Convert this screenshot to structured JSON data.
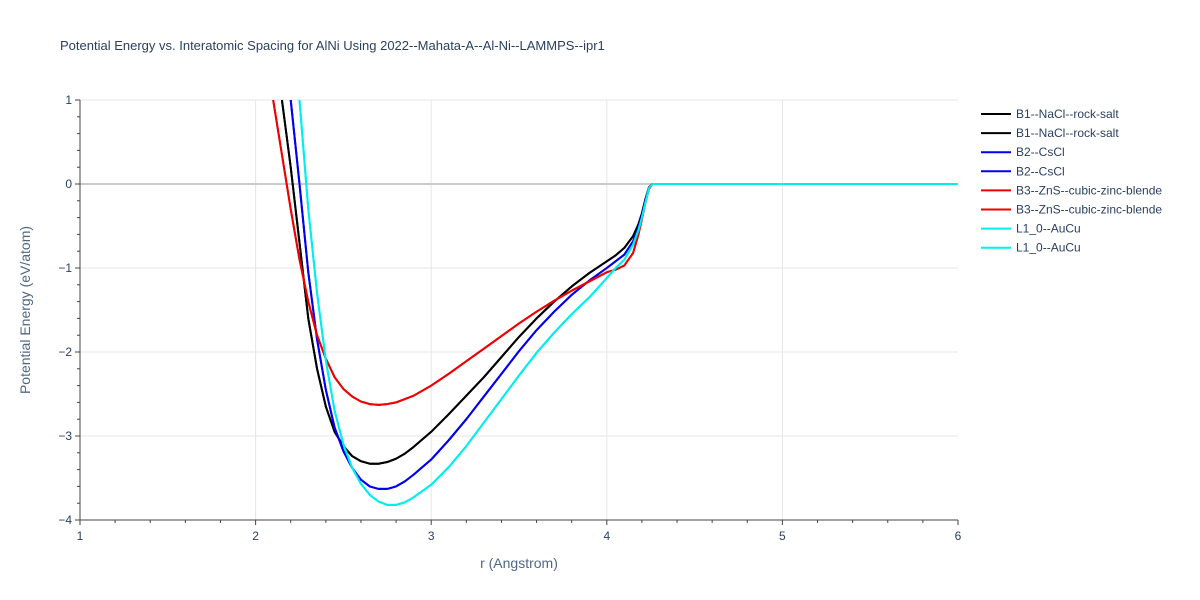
{
  "chart_data": {
    "type": "line",
    "title": "Potential Energy vs. Interatomic Spacing for AlNi Using 2022--Mahata-A--Al-Ni--LAMMPS--ipr1",
    "xlabel": "r (Angstrom)",
    "ylabel": "Potential Energy (eV/atom)",
    "xlim": [
      1,
      6
    ],
    "ylim": [
      -4,
      1
    ],
    "xticks": [
      1,
      2,
      3,
      4,
      5,
      6
    ],
    "xtick_labels": [
      "1",
      "2",
      "3",
      "4",
      "5",
      "6"
    ],
    "yticks": [
      1,
      0,
      -1,
      -2,
      -3,
      -4
    ],
    "ytick_labels": [
      "1",
      "0",
      "−1",
      "−2",
      "−3",
      "−4"
    ],
    "grid": true,
    "legend_position": "right",
    "series": [
      {
        "name": "B1--NaCl--rock-salt",
        "color": "#000000",
        "x": [
          2.15,
          2.2,
          2.25,
          2.3,
          2.35,
          2.4,
          2.45,
          2.5,
          2.55,
          2.6,
          2.65,
          2.7,
          2.75,
          2.8,
          2.85,
          2.9,
          3.0,
          3.1,
          3.2,
          3.3,
          3.4,
          3.5,
          3.6,
          3.7,
          3.8,
          3.9,
          4.0,
          4.05,
          4.1,
          4.15,
          4.18,
          4.2,
          4.22,
          4.24,
          4.26,
          4.3,
          4.5,
          5.0,
          5.5,
          6.0
        ],
        "y": [
          1.0,
          0.2,
          -0.7,
          -1.6,
          -2.2,
          -2.65,
          -2.95,
          -3.12,
          -3.24,
          -3.3,
          -3.33,
          -3.33,
          -3.31,
          -3.27,
          -3.21,
          -3.13,
          -2.95,
          -2.74,
          -2.52,
          -2.3,
          -2.06,
          -1.82,
          -1.6,
          -1.4,
          -1.22,
          -1.06,
          -0.92,
          -0.85,
          -0.76,
          -0.62,
          -0.48,
          -0.35,
          -0.18,
          -0.04,
          0.0,
          0.0,
          0.0,
          0.0,
          0.0,
          0.0
        ]
      },
      {
        "name": "B1--NaCl--rock-salt",
        "color": "#000000",
        "x": [
          2.15,
          2.2,
          2.25,
          2.3,
          2.35,
          2.4,
          2.45,
          2.5,
          2.55,
          2.6,
          2.65,
          2.7,
          2.75,
          2.8,
          2.85,
          2.9,
          3.0,
          3.1,
          3.2,
          3.3,
          3.4,
          3.5,
          3.6,
          3.7,
          3.8,
          3.9,
          4.0,
          4.05,
          4.1,
          4.15,
          4.18,
          4.2,
          4.22,
          4.24,
          4.26,
          4.3,
          4.5,
          5.0,
          5.5,
          6.0
        ],
        "y": [
          1.0,
          0.2,
          -0.7,
          -1.6,
          -2.2,
          -2.65,
          -2.95,
          -3.12,
          -3.24,
          -3.3,
          -3.33,
          -3.33,
          -3.31,
          -3.27,
          -3.21,
          -3.13,
          -2.95,
          -2.74,
          -2.52,
          -2.3,
          -2.06,
          -1.82,
          -1.6,
          -1.4,
          -1.22,
          -1.06,
          -0.92,
          -0.85,
          -0.76,
          -0.62,
          -0.48,
          -0.35,
          -0.18,
          -0.04,
          0.0,
          0.0,
          0.0,
          0.0,
          0.0,
          0.0
        ]
      },
      {
        "name": "B2--CsCl",
        "color": "#0000ee",
        "x": [
          2.2,
          2.25,
          2.3,
          2.35,
          2.4,
          2.45,
          2.5,
          2.55,
          2.6,
          2.65,
          2.7,
          2.75,
          2.8,
          2.85,
          2.9,
          3.0,
          3.1,
          3.2,
          3.3,
          3.4,
          3.5,
          3.6,
          3.7,
          3.8,
          3.9,
          4.0,
          4.05,
          4.1,
          4.15,
          4.18,
          4.2,
          4.22,
          4.24,
          4.26,
          4.3,
          4.5,
          5.0,
          5.5,
          6.0
        ],
        "y": [
          1.0,
          0.0,
          -1.05,
          -1.85,
          -2.45,
          -2.9,
          -3.18,
          -3.38,
          -3.52,
          -3.6,
          -3.63,
          -3.63,
          -3.6,
          -3.54,
          -3.46,
          -3.28,
          -3.05,
          -2.8,
          -2.53,
          -2.26,
          -1.99,
          -1.74,
          -1.52,
          -1.32,
          -1.15,
          -1.0,
          -0.92,
          -0.84,
          -0.68,
          -0.52,
          -0.38,
          -0.2,
          -0.05,
          0.0,
          0.0,
          0.0,
          0.0,
          0.0,
          0.0
        ]
      },
      {
        "name": "B2--CsCl",
        "color": "#0000ee",
        "x": [
          2.2,
          2.25,
          2.3,
          2.35,
          2.4,
          2.45,
          2.5,
          2.55,
          2.6,
          2.65,
          2.7,
          2.75,
          2.8,
          2.85,
          2.9,
          3.0,
          3.1,
          3.2,
          3.3,
          3.4,
          3.5,
          3.6,
          3.7,
          3.8,
          3.9,
          4.0,
          4.05,
          4.1,
          4.15,
          4.18,
          4.2,
          4.22,
          4.24,
          4.26,
          4.3,
          4.5,
          5.0,
          5.5,
          6.0
        ],
        "y": [
          1.0,
          0.0,
          -1.05,
          -1.85,
          -2.45,
          -2.9,
          -3.18,
          -3.38,
          -3.52,
          -3.6,
          -3.63,
          -3.63,
          -3.6,
          -3.54,
          -3.46,
          -3.28,
          -3.05,
          -2.8,
          -2.53,
          -2.26,
          -1.99,
          -1.74,
          -1.52,
          -1.32,
          -1.15,
          -1.0,
          -0.92,
          -0.84,
          -0.68,
          -0.52,
          -0.38,
          -0.2,
          -0.05,
          0.0,
          0.0,
          0.0,
          0.0,
          0.0,
          0.0
        ]
      },
      {
        "name": "B3--ZnS--cubic-zinc-blende",
        "color": "#ee0000",
        "x": [
          2.1,
          2.15,
          2.2,
          2.25,
          2.3,
          2.35,
          2.4,
          2.45,
          2.5,
          2.55,
          2.6,
          2.65,
          2.7,
          2.75,
          2.8,
          2.85,
          2.9,
          3.0,
          3.1,
          3.2,
          3.3,
          3.4,
          3.5,
          3.6,
          3.7,
          3.8,
          3.9,
          4.0,
          4.05,
          4.1,
          4.15,
          4.18,
          4.2,
          4.22,
          4.24,
          4.26,
          4.3,
          4.5,
          5.0,
          5.5,
          6.0
        ],
        "y": [
          1.0,
          0.35,
          -0.3,
          -0.9,
          -1.4,
          -1.8,
          -2.08,
          -2.3,
          -2.44,
          -2.53,
          -2.59,
          -2.62,
          -2.63,
          -2.62,
          -2.6,
          -2.56,
          -2.52,
          -2.4,
          -2.26,
          -2.11,
          -1.96,
          -1.81,
          -1.66,
          -1.52,
          -1.39,
          -1.27,
          -1.16,
          -1.05,
          -1.02,
          -0.97,
          -0.82,
          -0.6,
          -0.42,
          -0.22,
          -0.06,
          0.0,
          0.0,
          0.0,
          0.0,
          0.0,
          0.0
        ]
      },
      {
        "name": "B3--ZnS--cubic-zinc-blende",
        "color": "#ee0000",
        "x": [
          2.1,
          2.15,
          2.2,
          2.25,
          2.3,
          2.35,
          2.4,
          2.45,
          2.5,
          2.55,
          2.6,
          2.65,
          2.7,
          2.75,
          2.8,
          2.85,
          2.9,
          3.0,
          3.1,
          3.2,
          3.3,
          3.4,
          3.5,
          3.6,
          3.7,
          3.8,
          3.9,
          4.0,
          4.05,
          4.1,
          4.15,
          4.18,
          4.2,
          4.22,
          4.24,
          4.26,
          4.3,
          4.5,
          5.0,
          5.5,
          6.0
        ],
        "y": [
          1.0,
          0.35,
          -0.3,
          -0.9,
          -1.4,
          -1.8,
          -2.08,
          -2.3,
          -2.44,
          -2.53,
          -2.59,
          -2.62,
          -2.63,
          -2.62,
          -2.6,
          -2.56,
          -2.52,
          -2.4,
          -2.26,
          -2.11,
          -1.96,
          -1.81,
          -1.66,
          -1.52,
          -1.39,
          -1.27,
          -1.16,
          -1.05,
          -1.02,
          -0.97,
          -0.82,
          -0.6,
          -0.42,
          -0.22,
          -0.06,
          0.0,
          0.0,
          0.0,
          0.0,
          0.0,
          0.0
        ]
      },
      {
        "name": "L1_0--AuCu",
        "color": "#00eeee",
        "x": [
          2.25,
          2.3,
          2.35,
          2.4,
          2.45,
          2.5,
          2.55,
          2.6,
          2.65,
          2.7,
          2.75,
          2.8,
          2.85,
          2.9,
          3.0,
          3.1,
          3.2,
          3.3,
          3.4,
          3.5,
          3.6,
          3.7,
          3.8,
          3.9,
          4.0,
          4.05,
          4.1,
          4.15,
          4.18,
          4.2,
          4.22,
          4.24,
          4.26,
          4.3,
          4.5,
          5.0,
          5.5,
          6.0
        ],
        "y": [
          1.0,
          -0.3,
          -1.3,
          -2.1,
          -2.7,
          -3.1,
          -3.38,
          -3.57,
          -3.7,
          -3.78,
          -3.82,
          -3.82,
          -3.79,
          -3.73,
          -3.58,
          -3.37,
          -3.12,
          -2.84,
          -2.56,
          -2.28,
          -2.01,
          -1.77,
          -1.55,
          -1.35,
          -1.12,
          -1.0,
          -0.9,
          -0.72,
          -0.55,
          -0.4,
          -0.22,
          -0.05,
          0.0,
          0.0,
          0.0,
          0.0,
          0.0,
          0.0
        ]
      },
      {
        "name": "L1_0--AuCu",
        "color": "#00eeee",
        "x": [
          2.25,
          2.3,
          2.35,
          2.4,
          2.45,
          2.5,
          2.55,
          2.6,
          2.65,
          2.7,
          2.75,
          2.8,
          2.85,
          2.9,
          3.0,
          3.1,
          3.2,
          3.3,
          3.4,
          3.5,
          3.6,
          3.7,
          3.8,
          3.9,
          4.0,
          4.05,
          4.1,
          4.15,
          4.18,
          4.2,
          4.22,
          4.24,
          4.26,
          4.3,
          4.5,
          5.0,
          5.5,
          6.0
        ],
        "y": [
          1.0,
          -0.3,
          -1.3,
          -2.1,
          -2.7,
          -3.1,
          -3.38,
          -3.57,
          -3.7,
          -3.78,
          -3.82,
          -3.82,
          -3.79,
          -3.73,
          -3.58,
          -3.37,
          -3.12,
          -2.84,
          -2.56,
          -2.28,
          -2.01,
          -1.77,
          -1.55,
          -1.35,
          -1.12,
          -1.0,
          -0.9,
          -0.72,
          -0.55,
          -0.4,
          -0.22,
          -0.05,
          0.0,
          0.0,
          0.0,
          0.0,
          0.0,
          0.0
        ]
      }
    ]
  }
}
